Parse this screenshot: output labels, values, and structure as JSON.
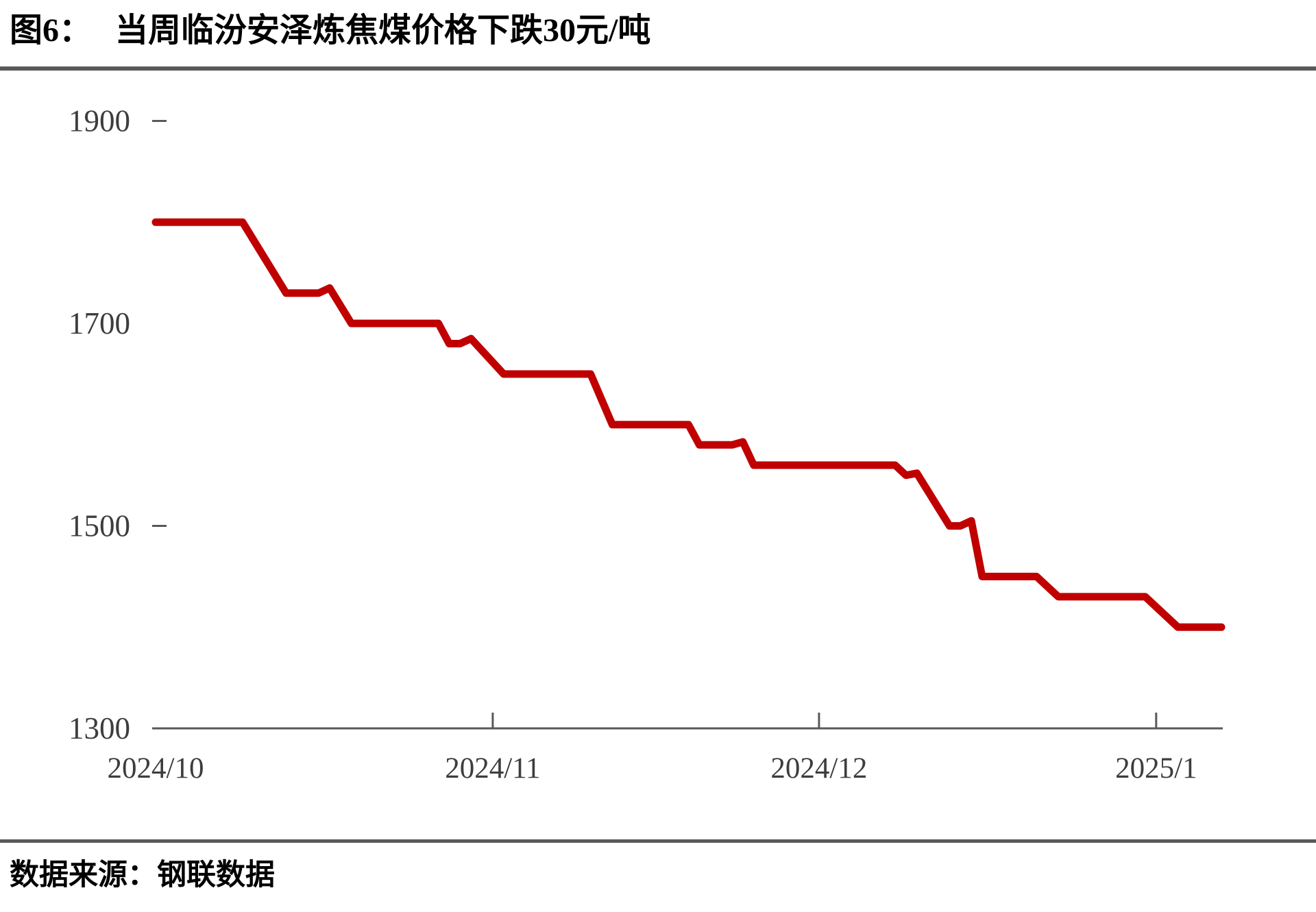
{
  "title": {
    "prefix": "图6：",
    "text": "当周临汾安泽炼焦煤价格下跌30元/吨"
  },
  "source": {
    "text": "数据来源：钢联数据"
  },
  "colors": {
    "line": "#C00000",
    "axis": "#595959",
    "tick_label": "#3d3d3d",
    "divider": "#595959"
  },
  "chart_data": {
    "type": "line",
    "title": "当周临汾安泽炼焦煤价格下跌30元/吨",
    "xlabel": "",
    "ylabel": "",
    "ylim": [
      1300,
      1900
    ],
    "x_domain": [
      "2024-10-01",
      "2025-01-07"
    ],
    "grid": "off",
    "legend": "none",
    "y_labels": [
      1900,
      1700,
      1500,
      1300
    ],
    "y_tick_dashes": [
      1900,
      1500
    ],
    "x_ticks": [
      "2024-11-01",
      "2024-12-01",
      "2025-01-01"
    ],
    "x_labels": [
      {
        "text": "2024/10",
        "date": "2024-10-01"
      },
      {
        "text": "2024/11",
        "date": "2024-11-01"
      },
      {
        "text": "2024/12",
        "date": "2024-12-01"
      },
      {
        "text": "2025/1",
        "date": "2025-01-01"
      }
    ],
    "x": [
      "2024-10-01",
      "2024-10-09",
      "2024-10-13",
      "2024-10-16",
      "2024-10-17",
      "2024-10-19",
      "2024-10-27",
      "2024-10-28",
      "2024-10-29",
      "2024-10-30",
      "2024-11-02",
      "2024-11-10",
      "2024-11-12",
      "2024-11-19",
      "2024-11-20",
      "2024-11-23",
      "2024-11-24",
      "2024-11-25",
      "2024-12-08",
      "2024-12-09",
      "2024-12-10",
      "2024-12-13",
      "2024-12-14",
      "2024-12-15",
      "2024-12-16",
      "2024-12-21",
      "2024-12-23",
      "2024-12-31",
      "2025-01-03",
      "2025-01-07"
    ],
    "values": [
      1800,
      1800,
      1730,
      1730,
      1735,
      1700,
      1700,
      1680,
      1680,
      1685,
      1650,
      1650,
      1600,
      1600,
      1580,
      1580,
      1583,
      1560,
      1560,
      1550,
      1552,
      1500,
      1500,
      1505,
      1450,
      1450,
      1430,
      1430,
      1400,
      1400
    ]
  }
}
